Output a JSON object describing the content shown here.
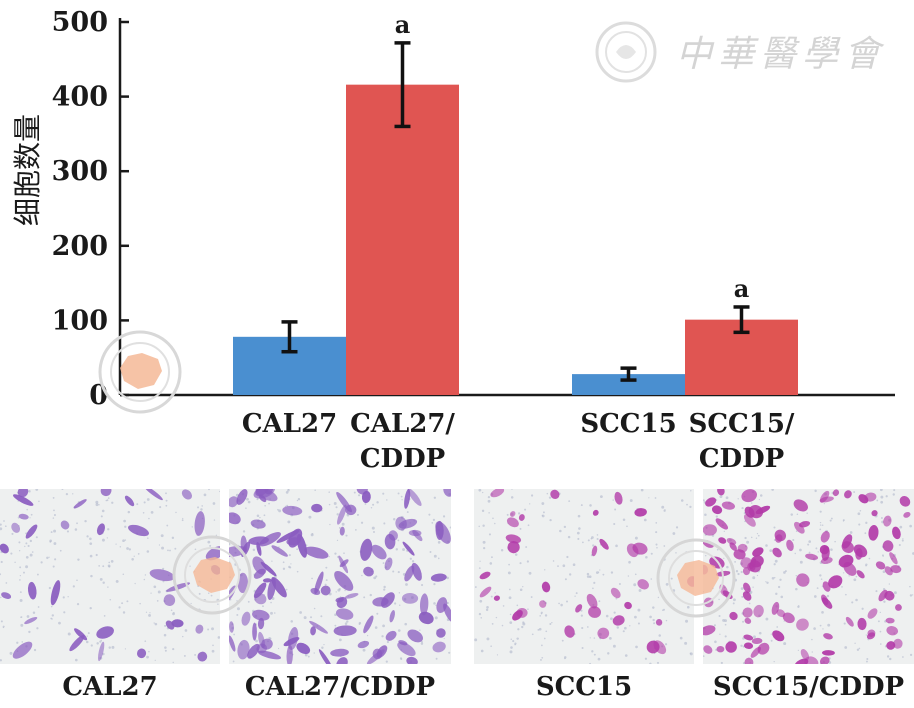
{
  "chart_data": {
    "type": "bar",
    "ylabel": "细胞数量",
    "ylim": [
      0,
      500
    ],
    "yticks": [
      0,
      100,
      200,
      300,
      400,
      500
    ],
    "groups": [
      {
        "bars": [
          {
            "label_lines": [
              "CAL27"
            ],
            "value": 78,
            "error": 20,
            "color": "#4a8fd0",
            "sig": ""
          },
          {
            "label_lines": [
              "CAL27/",
              "CDDP"
            ],
            "value": 416,
            "error": 56,
            "color": "#e05552",
            "sig": "a"
          }
        ]
      },
      {
        "bars": [
          {
            "label_lines": [
              "SCC15"
            ],
            "value": 28,
            "error": 8,
            "color": "#4a8fd0",
            "sig": ""
          },
          {
            "label_lines": [
              "SCC15/",
              "CDDP"
            ],
            "value": 101,
            "error": 17,
            "color": "#e05552",
            "sig": "a"
          }
        ]
      }
    ]
  },
  "watermark": {
    "text": "中華醫學會"
  },
  "panels": [
    {
      "caption": "CAL27",
      "stain": "#8a5cc0",
      "density": "sparse"
    },
    {
      "caption": "CAL27/CDDP",
      "stain": "#8a5cc0",
      "density": "dense"
    },
    {
      "caption": "SCC15",
      "stain": "#b23aa8",
      "density": "sparse"
    },
    {
      "caption": "SCC15/CDDP",
      "stain": "#b23aa8",
      "density": "dense"
    }
  ]
}
